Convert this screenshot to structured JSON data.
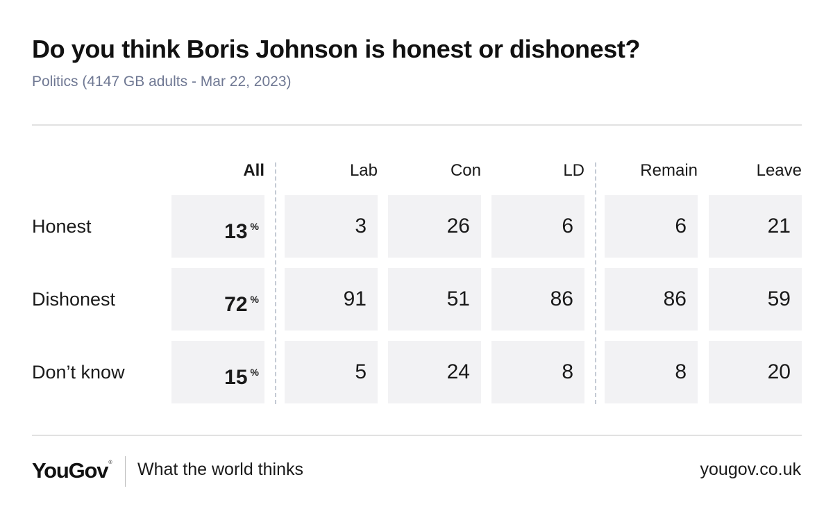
{
  "header": {
    "title": "Do you think Boris Johnson is honest or dishonest?",
    "subtitle": "Politics (4147 GB adults - Mar 22, 2023)"
  },
  "chart_data": {
    "type": "table",
    "title": "Do you think Boris Johnson is honest or dishonest?",
    "subtitle": "Politics (4147 GB adults - Mar 22, 2023)",
    "columns": [
      "All",
      "Lab",
      "Con",
      "LD",
      "Remain",
      "Leave"
    ],
    "percent_sign": "%",
    "rows": [
      {
        "label": "Honest",
        "values": [
          "13",
          "3",
          "26",
          "6",
          "6",
          "21"
        ]
      },
      {
        "label": "Dishonest",
        "values": [
          "72",
          "91",
          "51",
          "86",
          "86",
          "59"
        ]
      },
      {
        "label": "Don’t know",
        "values": [
          "15",
          "5",
          "24",
          "8",
          "8",
          "20"
        ]
      }
    ]
  },
  "footer": {
    "logo": "YouGov",
    "logo_mark": "®",
    "tagline": "What the world thinks",
    "site": "yougov.co.uk"
  },
  "colors": {
    "cell_background": "#f2f2f4",
    "subtitle": "#6f7893",
    "divider": "#e1e1e1",
    "dashed_separator": "#c4cad4"
  }
}
